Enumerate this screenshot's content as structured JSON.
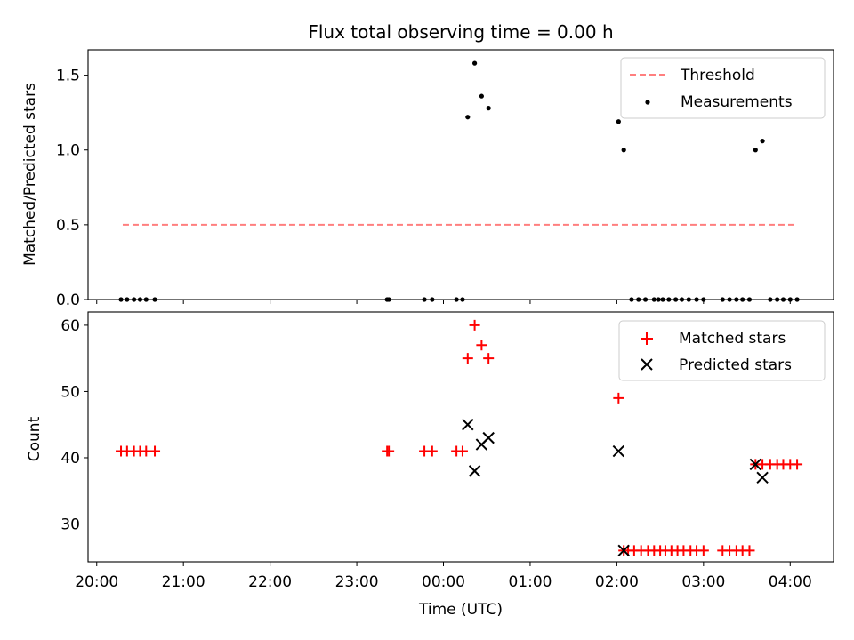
{
  "chart_data": [
    {
      "type": "scatter",
      "title": "Flux total observing time = 0.00 h",
      "xlabel": "",
      "ylabel": "Matched/Predicted stars",
      "xlim": [
        -0.1,
        8.5
      ],
      "ylim": [
        0,
        1.67
      ],
      "yticks": [
        0.0,
        0.5,
        1.0,
        1.5
      ],
      "ytick_labels": [
        "0.0",
        "0.5",
        "1.0",
        "1.5"
      ],
      "threshold": {
        "name": "Threshold",
        "value": 0.5,
        "x_range": [
          0.3,
          8.05
        ],
        "color": "#ff7f7f"
      },
      "series": [
        {
          "name": "Measurements",
          "color": "#000000",
          "x": [
            0.28,
            0.35,
            0.43,
            0.5,
            0.57,
            0.67,
            3.35,
            3.37,
            3.78,
            3.87,
            4.15,
            4.22,
            4.28,
            4.36,
            4.44,
            4.52,
            6.02,
            6.08,
            6.17,
            6.25,
            6.33,
            6.43,
            6.48,
            6.53,
            6.6,
            6.68,
            6.75,
            6.83,
            6.92,
            7.0,
            7.22,
            7.3,
            7.38,
            7.45,
            7.53,
            7.6,
            7.68,
            7.77,
            7.85,
            7.92,
            8.0,
            8.08
          ],
          "y": [
            0,
            0,
            0,
            0,
            0,
            0,
            0,
            0,
            0,
            0,
            0,
            0,
            1.22,
            1.58,
            1.36,
            1.28,
            1.19,
            1.0,
            0,
            0,
            0,
            0,
            0,
            0,
            0,
            0,
            0,
            0,
            0,
            0,
            0,
            0,
            0,
            0,
            0,
            1.0,
            1.06,
            0,
            0,
            0,
            0,
            0
          ]
        }
      ],
      "legend": {
        "position": "upper right",
        "entries": [
          "Threshold",
          "Measurements"
        ]
      }
    },
    {
      "type": "scatter",
      "title": "",
      "xlabel": "Time (UTC)",
      "ylabel": "Count",
      "xlim": [
        -0.1,
        8.5
      ],
      "ylim": [
        24.3,
        62
      ],
      "yticks": [
        30,
        40,
        50,
        60
      ],
      "ytick_labels": [
        "30",
        "40",
        "50",
        "60"
      ],
      "xticks": [
        0,
        1,
        2,
        3,
        4,
        5,
        6,
        7,
        8
      ],
      "xtick_labels": [
        "20:00",
        "21:00",
        "22:00",
        "23:00",
        "00:00",
        "01:00",
        "02:00",
        "03:00",
        "04:00"
      ],
      "series": [
        {
          "name": "Matched stars",
          "marker": "+",
          "color": "#ff0000",
          "x": [
            0.28,
            0.35,
            0.43,
            0.5,
            0.57,
            0.67,
            3.35,
            3.37,
            3.78,
            3.87,
            4.15,
            4.22,
            4.28,
            4.36,
            4.44,
            4.52,
            6.02,
            6.08,
            6.13,
            6.2,
            6.28,
            6.36,
            6.43,
            6.5,
            6.56,
            6.63,
            6.7,
            6.77,
            6.85,
            6.92,
            7.0,
            7.22,
            7.3,
            7.38,
            7.45,
            7.53,
            7.6,
            7.68,
            7.77,
            7.85,
            7.92,
            8.0,
            8.08
          ],
          "y": [
            41,
            41,
            41,
            41,
            41,
            41,
            41,
            41,
            41,
            41,
            41,
            41,
            55,
            60,
            57,
            55,
            49,
            26,
            26,
            26,
            26,
            26,
            26,
            26,
            26,
            26,
            26,
            26,
            26,
            26,
            26,
            26,
            26,
            26,
            26,
            26,
            39,
            39,
            39,
            39,
            39,
            39,
            39
          ]
        },
        {
          "name": "Predicted stars",
          "marker": "x",
          "color": "#000000",
          "x": [
            4.28,
            4.36,
            4.44,
            4.52,
            6.02,
            6.08,
            7.6,
            7.68
          ],
          "y": [
            45,
            38,
            42,
            43,
            41,
            26,
            39,
            37
          ]
        }
      ],
      "legend": {
        "position": "upper right",
        "entries": [
          "Matched stars",
          "Predicted stars"
        ]
      }
    }
  ]
}
